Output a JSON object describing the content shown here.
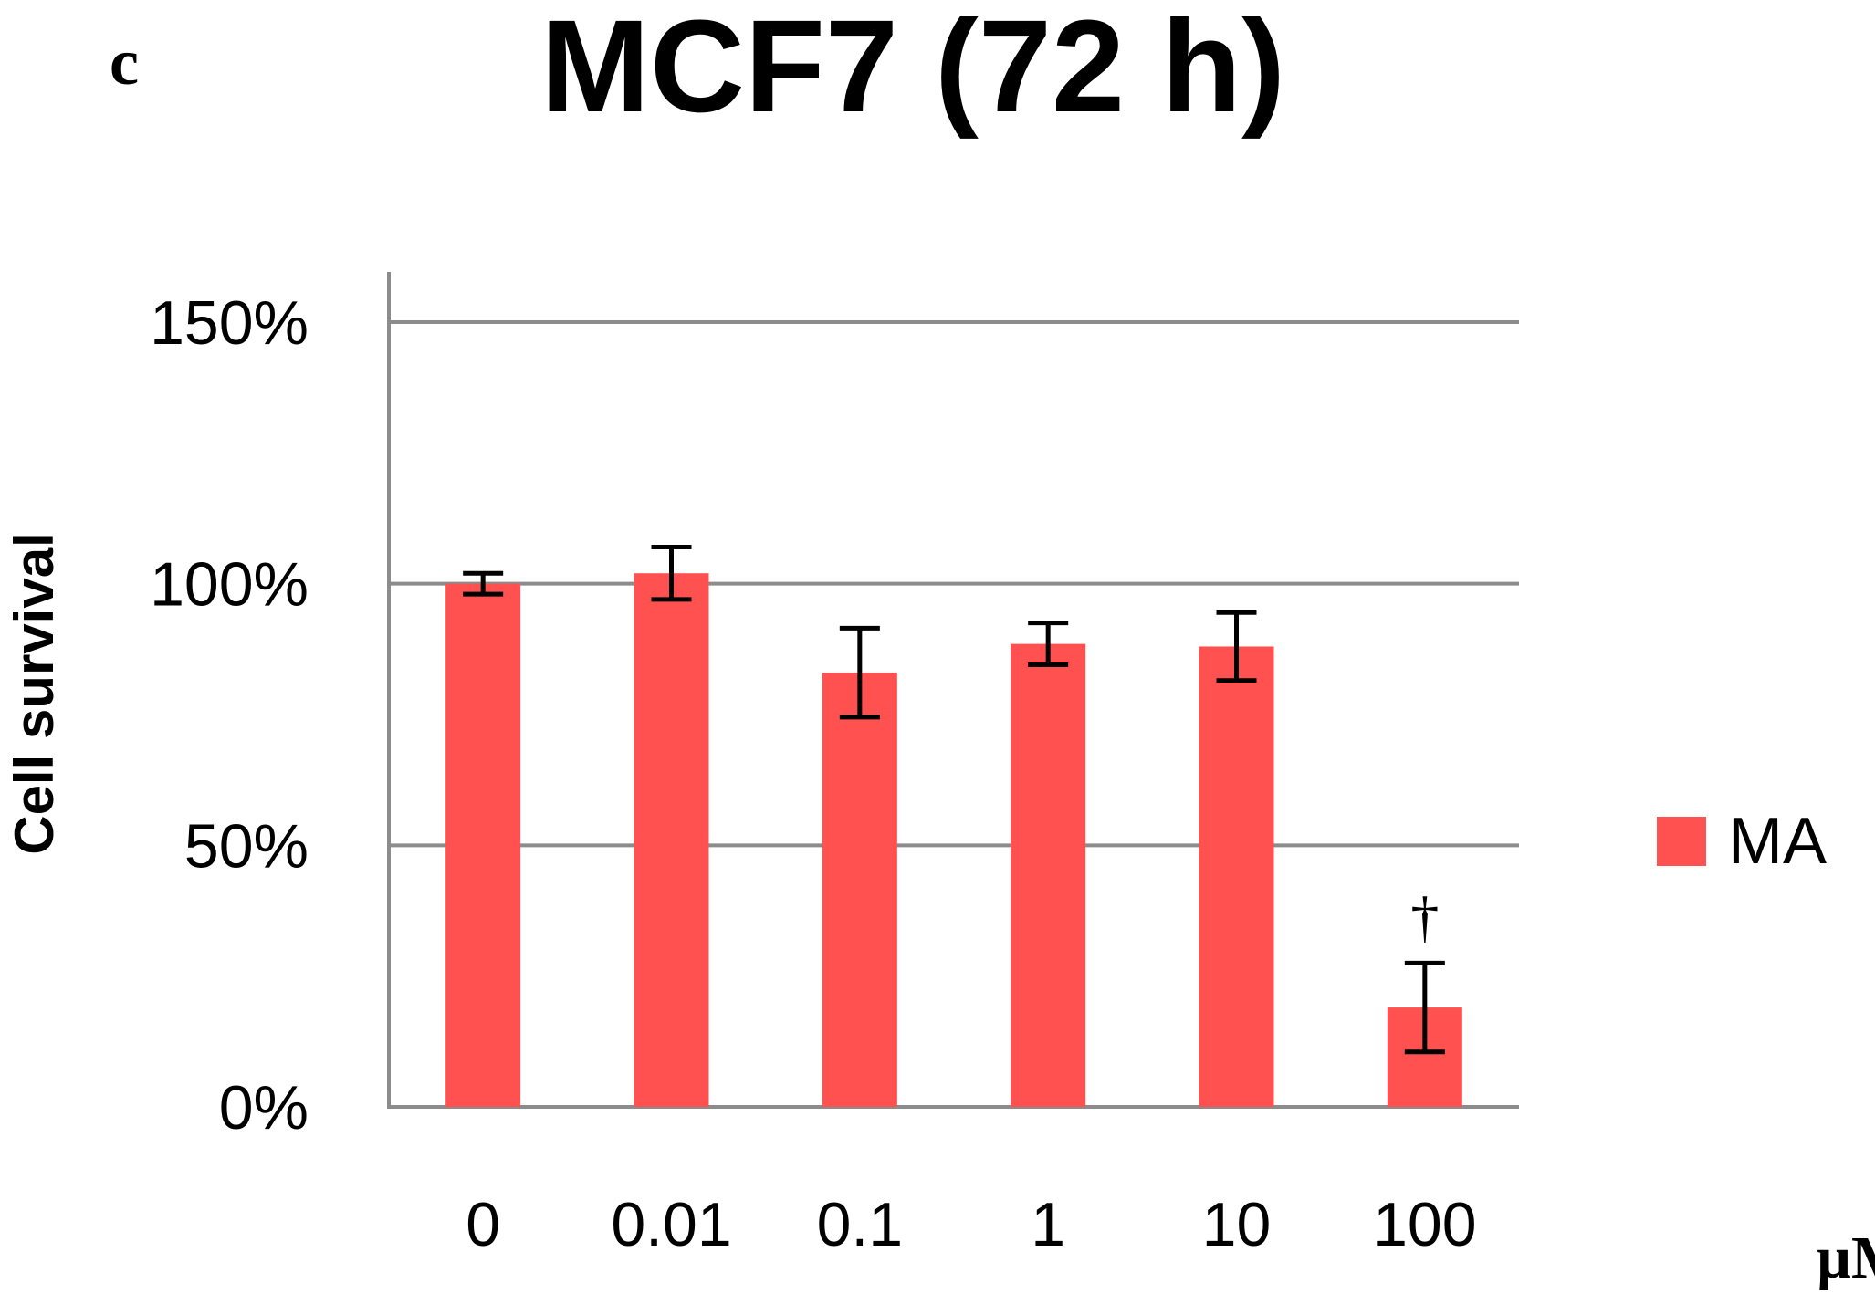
{
  "panel_label": "c",
  "chart_data": {
    "type": "bar",
    "title": "MCF7 (72 h)",
    "xlabel": "µM",
    "ylabel": "Cell survival",
    "categories": [
      "0",
      "0.01",
      "0.1",
      "1",
      "10",
      "100"
    ],
    "series": [
      {
        "name": "MA",
        "values": [
          1.0,
          1.02,
          0.83,
          0.885,
          0.88,
          0.19
        ],
        "errors": [
          0.02,
          0.05,
          0.085,
          0.04,
          0.065,
          0.085
        ],
        "color": "#ff5250"
      }
    ],
    "ylim": [
      0,
      1.5
    ],
    "yticks": [
      0,
      0.5,
      1.0,
      1.5
    ],
    "ytick_labels": [
      "0%",
      "50%",
      "100%",
      "150%"
    ],
    "annotations": [
      {
        "category": "100",
        "text": "†"
      }
    ],
    "grid": true,
    "legend_position": "right"
  }
}
